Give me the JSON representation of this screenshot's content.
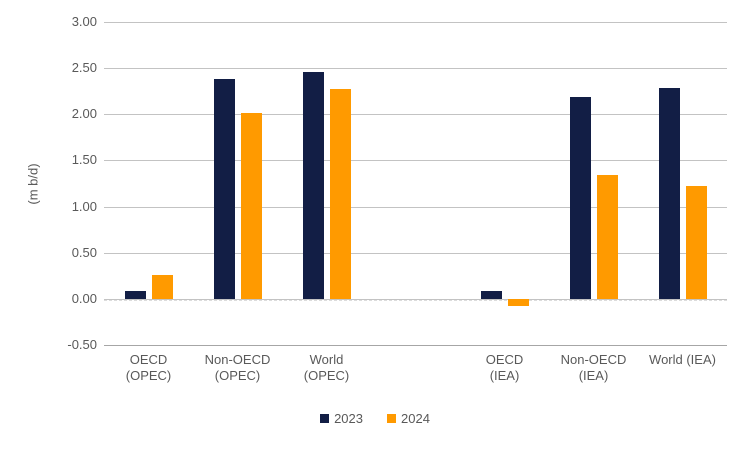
{
  "chart_data": {
    "type": "bar",
    "ylabel": "(m b/d)",
    "ylim": [
      -0.5,
      3.0
    ],
    "ytick_step": 0.5,
    "ytick_labels": [
      "3.00",
      "2.50",
      "2.00",
      "1.50",
      "1.00",
      "0.50",
      "0.00",
      "-0.50"
    ],
    "categories": [
      "OECD\n(OPEC)",
      "Non-OECD\n(OPEC)",
      "World\n(OPEC)",
      "",
      "OECD\n(IEA)",
      "Non-OECD\n(IEA)",
      "World (IEA)"
    ],
    "series": [
      {
        "name": "2023",
        "color": "#121E45",
        "values": [
          0.08,
          2.38,
          2.46,
          null,
          0.08,
          2.19,
          2.28
        ]
      },
      {
        "name": "2024",
        "color": "#FF9A00",
        "values": [
          0.26,
          2.01,
          2.27,
          null,
          -0.08,
          1.34,
          1.22
        ]
      }
    ],
    "legend_position": "bottom",
    "grid": true,
    "gridline_color": "#C3C3C3",
    "text_color": "#595959"
  }
}
